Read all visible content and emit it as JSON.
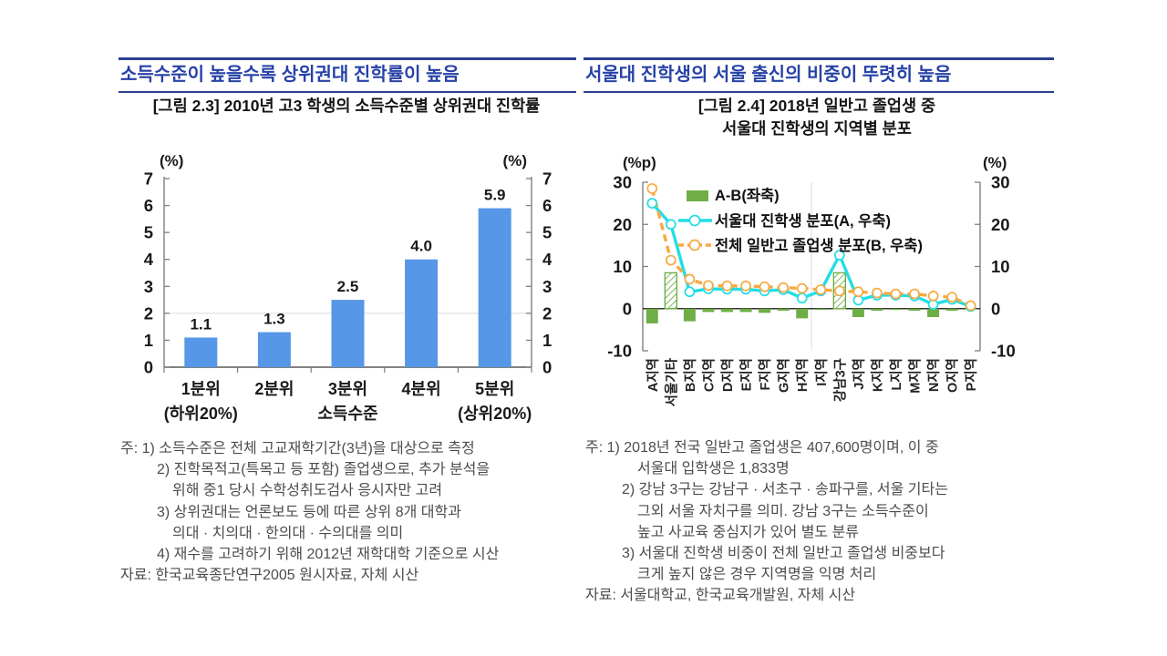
{
  "colors": {
    "accent_text": "#2742A6",
    "rule": "#2c3f92",
    "bar_blue": "#5697E7",
    "green": "#6FAE46",
    "cyan": "#22DDE6",
    "orange": "#F7A941"
  },
  "left_panel": {
    "headline": "소득수준이 높을수록 상위권대 진학률이 높음",
    "figure_title": "[그림 2.3] 2010년 고3 학생의 소득수준별 상위권대 진학률",
    "notes": [
      {
        "indent": 0,
        "text": "주: 1) 소득수준은 전체 고교재학기간(3년)을 대상으로 측정"
      },
      {
        "indent": 1,
        "text": "2) 진학목적고(특목고 등 포함) 졸업생으로, 추가 분석을"
      },
      {
        "indent": 2,
        "text": "위해 중1 당시 수학성취도검사 응시자만 고려"
      },
      {
        "indent": 1,
        "text": "3) 상위권대는 언론보도 등에 따른 상위 8개 대학과"
      },
      {
        "indent": 2,
        "text": "의대 · 치의대 · 한의대 · 수의대를 의미"
      },
      {
        "indent": 1,
        "text": "4) 재수를 고려하기 위해 2012년 재학대학 기준으로 시산"
      },
      {
        "indent": 0,
        "text": "자료: 한국교육종단연구2005 원시자료, 자체 시산"
      }
    ]
  },
  "right_panel": {
    "headline": "서울대 진학생의 서울 출신의 비중이 뚜렷히 높음",
    "figure_title_line1": "[그림 2.4] 2018년 일반고 졸업생 중",
    "figure_title_line2": "서울대 진학생의 지역별 분포",
    "notes": [
      {
        "indent": 0,
        "text": "주: 1) 2018년 전국 일반고 졸업생은 407,600명이며, 이 중"
      },
      {
        "indent": 2,
        "text": "서울대 입학생은 1,833명"
      },
      {
        "indent": 1,
        "text": "2) 강남 3구는 강남구 · 서초구 · 송파구를, 서울 기타는"
      },
      {
        "indent": 2,
        "text": "그외 서울 자치구를 의미. 강남 3구는 소득수준이"
      },
      {
        "indent": 2,
        "text": "높고 사교육 중심지가 있어 별도 분류"
      },
      {
        "indent": 1,
        "text": "3) 서울대 진학생 비중이 전체 일반고 졸업생 비중보다"
      },
      {
        "indent": 2,
        "text": "크게 높지 않은 경우 지역명을 익명 처리"
      },
      {
        "indent": 0,
        "text": "자료: 서울대학교, 한국교육개발원, 자체 시산"
      }
    ]
  },
  "chart_data": [
    {
      "type": "bar",
      "title": "[그림 2.3] 2010년 고3 학생의 소득수준별 상위권대 진학률",
      "categories": [
        "1분위",
        "2분위",
        "3분위",
        "4분위",
        "5분위"
      ],
      "category_sublabels": [
        "(하위20%)",
        "",
        "소득수준",
        "",
        "(상위20%)"
      ],
      "values": [
        1.1,
        1.3,
        2.5,
        4.0,
        5.9
      ],
      "xlabel": "소득수준",
      "ylabel_left": "(%)",
      "ylabel_right": "(%)",
      "ylim": [
        0,
        7
      ],
      "ytick_step": 1,
      "gridline_at": 2,
      "bar_color": "#5697E7"
    },
    {
      "type": "combo",
      "title": "[그림 2.4] 2018년 일반고 졸업생 중 서울대 진학생의 지역별 분포",
      "categories": [
        "A지역",
        "서울기타",
        "B지역",
        "C지역",
        "D지역",
        "E지역",
        "F지역",
        "G지역",
        "H지역",
        "I지역",
        "강남3구",
        "J지역",
        "K지역",
        "L지역",
        "M지역",
        "N지역",
        "O지역",
        "P지역"
      ],
      "ylabel_left": "(%p)",
      "ylabel_right": "(%)",
      "ylim": [
        -10,
        30
      ],
      "yticks": [
        -10,
        0,
        10,
        20,
        30
      ],
      "bar_series": {
        "name": "A-B(좌축)",
        "axis": "left",
        "color": "#6FAE46",
        "values": [
          -3.5,
          8.5,
          -3.0,
          -0.8,
          -0.8,
          -0.8,
          -1.0,
          -0.5,
          -2.3,
          -0.3,
          8.5,
          -2.0,
          -0.5,
          -0.3,
          -0.5,
          -2.0,
          -0.5,
          -0.2
        ],
        "hatched_indices": [
          1,
          10
        ]
      },
      "line_series": [
        {
          "name": "서울대 진학생 분포(A, 우축)",
          "axis": "right",
          "color": "#22DDE6",
          "style": "solid",
          "values": [
            25.0,
            20.0,
            4.0,
            4.7,
            4.6,
            4.6,
            4.2,
            4.5,
            2.5,
            4.2,
            12.7,
            2.0,
            3.2,
            3.2,
            3.0,
            1.0,
            2.2,
            0.5
          ]
        },
        {
          "name": "전체 일반고 졸업생 분포(B, 우축)",
          "axis": "right",
          "color": "#F7A941",
          "style": "dashed",
          "values": [
            28.5,
            11.5,
            7.0,
            5.5,
            5.4,
            5.4,
            5.2,
            5.0,
            4.8,
            4.5,
            4.2,
            4.0,
            3.7,
            3.5,
            3.5,
            3.0,
            2.7,
            0.7
          ]
        }
      ],
      "legend_position": "top-inside"
    }
  ]
}
